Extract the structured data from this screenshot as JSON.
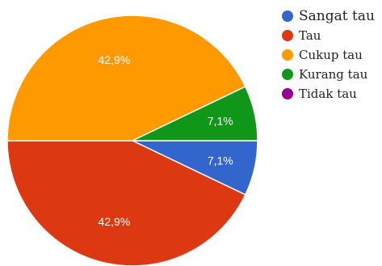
{
  "chart_data": {
    "type": "pie",
    "title": "",
    "slices": [
      {
        "label": "Sangat tau",
        "value": 7.1,
        "value_label": "7,1%",
        "color": "#3366cc"
      },
      {
        "label": "Tau",
        "value": 42.9,
        "value_label": "42,9%",
        "color": "#dc3912"
      },
      {
        "label": "Cukup tau",
        "value": 42.9,
        "value_label": "42,9%",
        "color": "#ff9900"
      },
      {
        "label": "Kurang tau",
        "value": 7.1,
        "value_label": "7,1%",
        "color": "#109618"
      },
      {
        "label": "Tidak tau",
        "value": 0,
        "value_label": "",
        "color": "#990099"
      }
    ],
    "legend_position": "right"
  }
}
